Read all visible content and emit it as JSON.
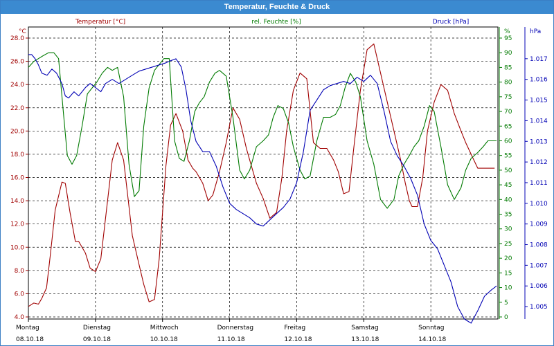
{
  "window": {
    "title": "Temperatur, Feuchte & Druck"
  },
  "colors": {
    "temperature": "#a00000",
    "humidity": "#007a00",
    "pressure": "#0000b4",
    "grid": "#000000",
    "axis": "#000000"
  },
  "chart_data": {
    "type": "line",
    "title": "Temperatur, Feuchte & Druck",
    "grid": true,
    "series_labels": {
      "temperature": "Temperatur [°C]",
      "humidity": "rel. Feuchte [%]",
      "pressure": "Druck [hPa]"
    },
    "axes": {
      "left": {
        "unit": "°C",
        "min": 4.0,
        "max": 28.0,
        "ticks": [
          "4.0",
          "6.0",
          "8.0",
          "10.0",
          "12.0",
          "14.0",
          "16.0",
          "18.0",
          "20.0",
          "22.0",
          "24.0",
          "26.0",
          "28.0"
        ]
      },
      "right1": {
        "unit": "%",
        "min": 0,
        "max": 95,
        "ticks": [
          "0",
          "5",
          "10",
          "15",
          "20",
          "25",
          "30",
          "35",
          "40",
          "45",
          "50",
          "55",
          "60",
          "65",
          "70",
          "75",
          "80",
          "85",
          "90",
          "95"
        ]
      },
      "right2": {
        "unit": "hPa",
        "min": 1.0045,
        "max": 1.018,
        "ticks": [
          "1.005",
          "1.006",
          "1.007",
          "1.008",
          "1.009",
          "1.010",
          "1.011",
          "1.012",
          "1.013",
          "1.014",
          "1.015",
          "1.016",
          "1.017"
        ]
      }
    },
    "x_days": [
      {
        "name": "Montag",
        "date": "08.10.18"
      },
      {
        "name": "Dienstag",
        "date": "09.10.18"
      },
      {
        "name": "Mittwoch",
        "date": "10.10.18"
      },
      {
        "name": "Donnerstag",
        "date": "11.10.18"
      },
      {
        "name": "Freitag",
        "date": "12.10.18"
      },
      {
        "name": "Samstag",
        "date": "13.10.18"
      },
      {
        "name": "Sonntag",
        "date": "14.10.18"
      }
    ],
    "x_range": [
      0,
      7
    ],
    "series": [
      {
        "name": "Temperatur [°C]",
        "axis": "left",
        "color": "#a00000",
        "x": [
          0,
          0.08,
          0.15,
          0.2,
          0.27,
          0.33,
          0.4,
          0.5,
          0.55,
          0.62,
          0.7,
          0.75,
          0.85,
          0.92,
          1.0,
          1.08,
          1.15,
          1.25,
          1.33,
          1.42,
          1.55,
          1.65,
          1.72,
          1.8,
          1.88,
          1.95,
          2.05,
          2.12,
          2.2,
          2.3,
          2.38,
          2.45,
          2.5,
          2.6,
          2.68,
          2.75,
          2.85,
          2.95,
          3.05,
          3.15,
          3.25,
          3.3,
          3.4,
          3.5,
          3.6,
          3.7,
          3.78,
          3.85,
          3.95,
          4.05,
          4.15,
          4.25,
          4.35,
          4.45,
          4.55,
          4.62,
          4.7,
          4.78,
          4.85,
          4.95,
          5.05,
          5.15,
          5.25,
          5.35,
          5.45,
          5.55,
          5.62,
          5.68,
          5.72,
          5.8,
          5.88,
          5.95,
          6.05,
          6.15,
          6.25,
          6.35,
          6.45,
          6.52,
          6.6,
          6.7,
          6.78,
          6.85,
          6.9,
          6.95
        ],
        "values": [
          4.9,
          5.2,
          5.1,
          5.6,
          6.5,
          9.5,
          13.2,
          15.6,
          15.5,
          13.0,
          10.5,
          10.5,
          9.5,
          8.2,
          7.9,
          9.0,
          12.5,
          17.5,
          19.0,
          17.5,
          11.0,
          8.5,
          6.8,
          5.3,
          5.5,
          9.0,
          17.0,
          20.5,
          21.5,
          20.0,
          17.5,
          16.8,
          16.5,
          15.5,
          14.0,
          14.5,
          16.5,
          19.0,
          22.0,
          21.0,
          18.5,
          17.5,
          15.5,
          14.2,
          12.5,
          13.0,
          16.0,
          20.0,
          23.5,
          25.0,
          24.5,
          19.0,
          18.5,
          18.5,
          17.5,
          16.5,
          14.6,
          14.8,
          18.5,
          23.5,
          27.0,
          27.5,
          25.0,
          22.5,
          20.0,
          17.5,
          15.5,
          14.0,
          13.5,
          13.5,
          16.0,
          20.0,
          22.5,
          24.0,
          23.5,
          21.5,
          20.0,
          19.0,
          18.0,
          16.8,
          16.8,
          16.8,
          16.8,
          16.8
        ]
      },
      {
        "name": "rel. Feuchte [%]",
        "axis": "right1",
        "color": "#007a00",
        "x": [
          0,
          0.08,
          0.15,
          0.22,
          0.3,
          0.38,
          0.45,
          0.52,
          0.58,
          0.65,
          0.72,
          0.8,
          0.88,
          0.95,
          1.02,
          1.1,
          1.18,
          1.25,
          1.33,
          1.42,
          1.5,
          1.58,
          1.65,
          1.72,
          1.8,
          1.88,
          1.95,
          2.02,
          2.1,
          2.18,
          2.25,
          2.32,
          2.4,
          2.48,
          2.55,
          2.62,
          2.7,
          2.78,
          2.85,
          2.95,
          3.05,
          3.15,
          3.22,
          3.3,
          3.4,
          3.5,
          3.58,
          3.65,
          3.72,
          3.8,
          3.88,
          3.95,
          4.05,
          4.12,
          4.2,
          4.3,
          4.4,
          4.5,
          4.58,
          4.65,
          4.72,
          4.8,
          4.88,
          4.95,
          5.05,
          5.15,
          5.25,
          5.35,
          5.45,
          5.52,
          5.6,
          5.68,
          5.75,
          5.82,
          5.9,
          5.98,
          6.05,
          6.15,
          6.25,
          6.35,
          6.45,
          6.52,
          6.6,
          6.7,
          6.78,
          6.85,
          6.92,
          6.98
        ],
        "values": [
          85,
          87,
          88,
          89,
          90,
          90,
          88,
          70,
          55,
          52,
          55,
          65,
          76,
          78,
          80,
          83,
          85,
          84,
          85,
          75,
          52,
          41,
          43,
          65,
          78,
          84,
          86,
          88,
          88,
          60,
          54,
          53,
          60,
          70,
          73,
          75,
          80,
          83,
          84,
          82,
          68,
          50,
          47,
          50,
          58,
          60,
          62,
          68,
          72,
          71,
          66,
          58,
          50,
          47,
          48,
          60,
          68,
          68,
          69,
          72,
          78,
          83,
          80,
          75,
          60,
          52,
          40,
          37,
          40,
          48,
          52,
          55,
          58,
          60,
          65,
          72,
          70,
          58,
          45,
          40,
          44,
          50,
          54,
          56,
          58,
          60,
          60,
          60
        ]
      },
      {
        "name": "Druck [hPa]",
        "axis": "right2",
        "color": "#0000b4",
        "x": [
          0,
          0.05,
          0.1,
          0.15,
          0.2,
          0.28,
          0.35,
          0.42,
          0.5,
          0.55,
          0.6,
          0.68,
          0.75,
          0.85,
          0.92,
          1.0,
          1.08,
          1.15,
          1.25,
          1.35,
          1.45,
          1.55,
          1.65,
          1.75,
          1.85,
          1.95,
          2.05,
          2.12,
          2.2,
          2.28,
          2.35,
          2.42,
          2.5,
          2.6,
          2.7,
          2.8,
          2.9,
          3.0,
          3.1,
          3.2,
          3.3,
          3.4,
          3.5,
          3.6,
          3.7,
          3.8,
          3.9,
          4.0,
          4.1,
          4.2,
          4.3,
          4.4,
          4.5,
          4.6,
          4.7,
          4.8,
          4.9,
          5.0,
          5.1,
          5.2,
          5.3,
          5.4,
          5.5,
          5.6,
          5.7,
          5.8,
          5.9,
          6.0,
          6.1,
          6.2,
          6.3,
          6.4,
          6.5,
          6.6,
          6.7,
          6.8,
          6.9,
          6.98
        ],
        "values": [
          1.0172,
          1.0172,
          1.017,
          1.0167,
          1.0163,
          1.0162,
          1.0165,
          1.0163,
          1.0158,
          1.0152,
          1.0151,
          1.0154,
          1.0152,
          1.0156,
          1.0158,
          1.0156,
          1.0154,
          1.0158,
          1.016,
          1.0158,
          1.016,
          1.0162,
          1.0164,
          1.0165,
          1.0166,
          1.0167,
          1.0168,
          1.0169,
          1.017,
          1.0166,
          1.0155,
          1.014,
          1.013,
          1.0125,
          1.0125,
          1.0118,
          1.0108,
          1.01,
          1.0097,
          1.0095,
          1.0093,
          1.009,
          1.0089,
          1.0092,
          1.0095,
          1.0098,
          1.0102,
          1.011,
          1.0125,
          1.0145,
          1.015,
          1.0155,
          1.0157,
          1.0158,
          1.0159,
          1.0158,
          1.0161,
          1.0159,
          1.0162,
          1.0158,
          1.0145,
          1.013,
          1.0123,
          1.0118,
          1.0112,
          1.0104,
          1.009,
          1.0082,
          1.0078,
          1.007,
          1.0062,
          1.005,
          1.0044,
          1.0042,
          1.0048,
          1.0055,
          1.0058,
          1.006
        ]
      }
    ]
  }
}
